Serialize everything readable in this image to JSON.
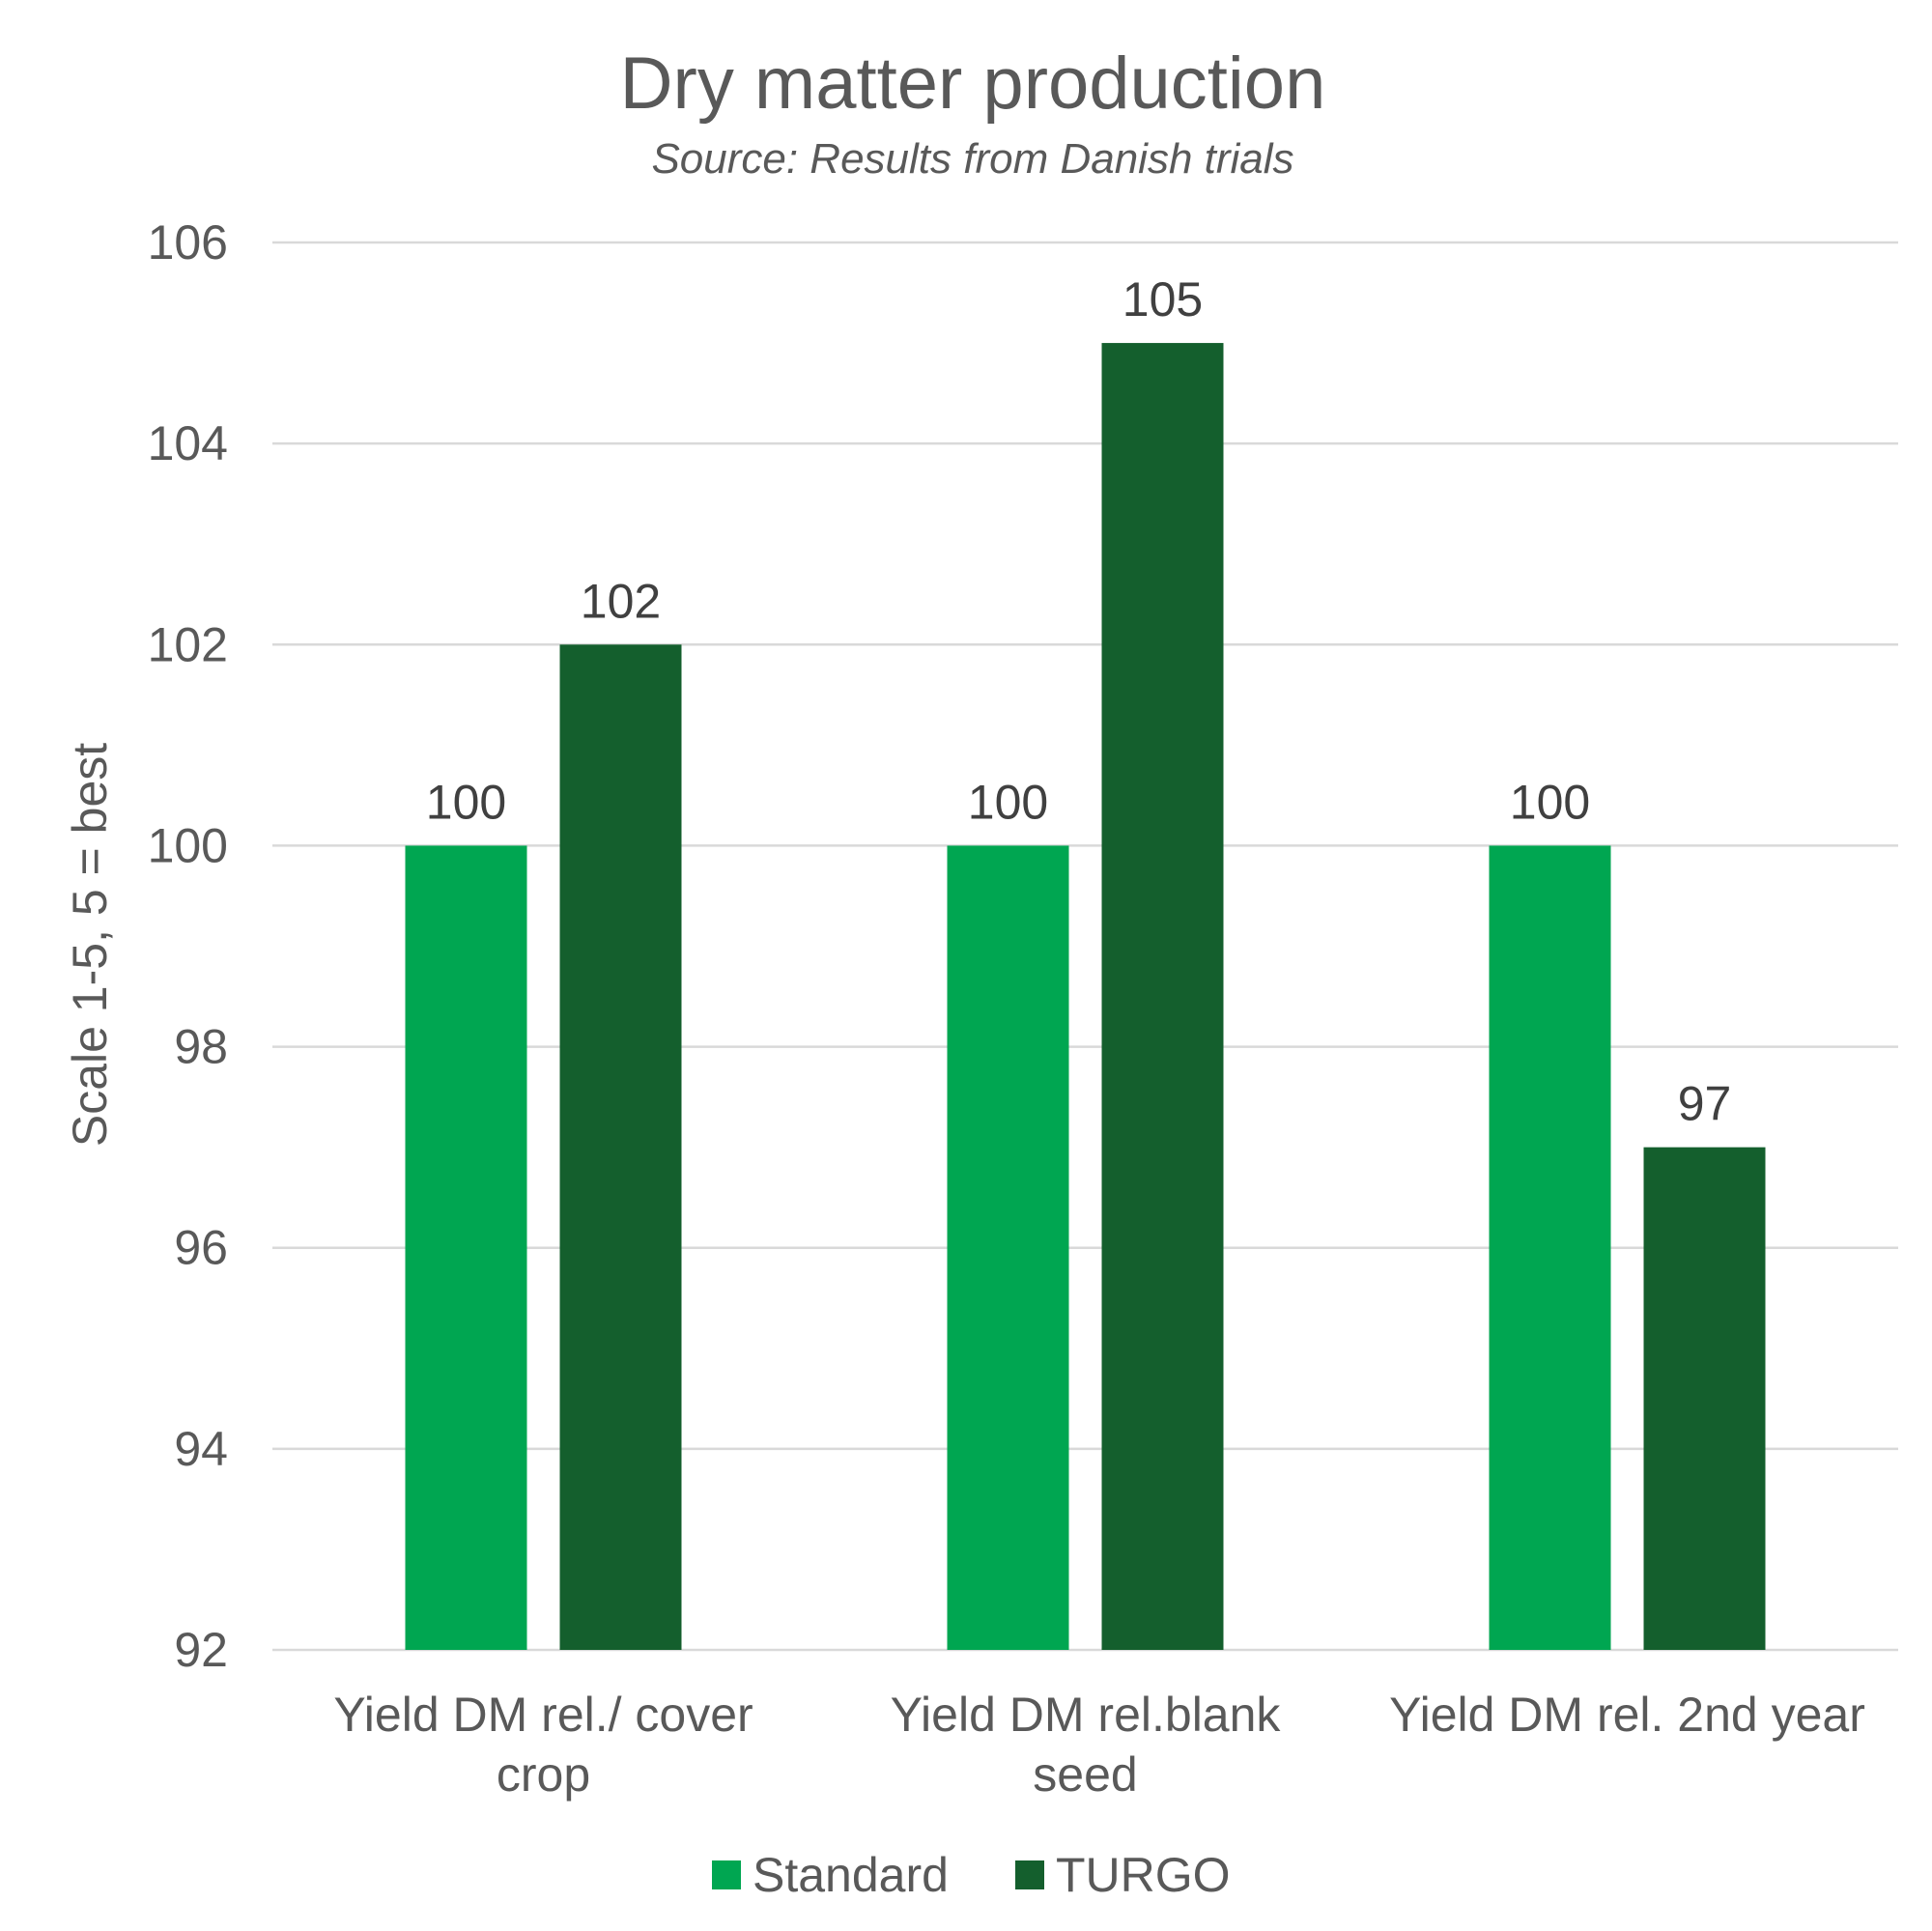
{
  "colors": {
    "standard": "#00A651",
    "turgo": "#145F2D",
    "grid": "#D9D9D9",
    "text": "#595959"
  },
  "chart_data": {
    "type": "bar",
    "title": "Dry matter production",
    "subtitle": "Source: Results from Danish trials",
    "ylabel": "Scale 1-5, 5 = best",
    "xlabel": "",
    "ylim": [
      92,
      106
    ],
    "yticks": [
      92,
      94,
      96,
      98,
      100,
      102,
      104,
      106
    ],
    "grid": true,
    "legend_position": "bottom",
    "categories": [
      [
        "Yield DM rel./ cover",
        "crop"
      ],
      [
        "Yield DM rel.blank",
        "seed"
      ],
      [
        "Yield DM rel. 2nd year"
      ]
    ],
    "series": [
      {
        "name": "Standard",
        "color": "#00A651",
        "values": [
          100,
          100,
          100
        ]
      },
      {
        "name": "TURGO",
        "color": "#145F2D",
        "values": [
          102,
          105,
          97
        ]
      }
    ]
  }
}
